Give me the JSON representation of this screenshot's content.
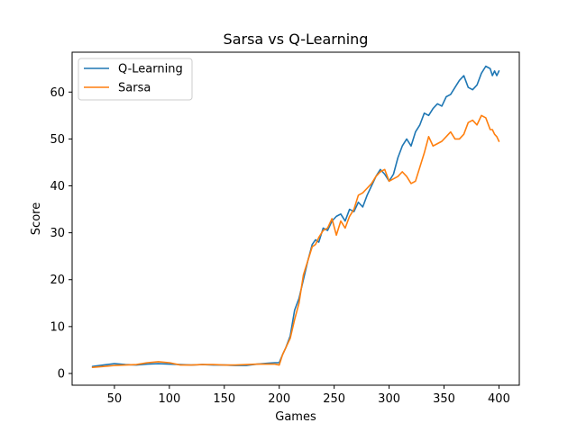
{
  "chart_data": {
    "type": "line",
    "title": "Sarsa vs Q-Learning",
    "xlabel": "Games",
    "ylabel": "Score",
    "xlim": [
      11.5,
      418.5
    ],
    "ylim": [
      -2.5,
      68.5
    ],
    "xticks": [
      50,
      100,
      150,
      200,
      250,
      300,
      350,
      400
    ],
    "yticks": [
      0,
      10,
      20,
      30,
      40,
      50,
      60
    ],
    "legend_position": "upper left",
    "grid": false,
    "series": [
      {
        "name": "Q-Learning",
        "color": "#1f77b4",
        "x": [
          30,
          40,
          50,
          60,
          70,
          80,
          90,
          100,
          110,
          120,
          130,
          140,
          150,
          160,
          170,
          180,
          190,
          196,
          200,
          203,
          206,
          210,
          214,
          218,
          222,
          226,
          230,
          233,
          236,
          240,
          244,
          248,
          252,
          256,
          260,
          264,
          268,
          272,
          276,
          280,
          284,
          288,
          292,
          296,
          300,
          304,
          308,
          312,
          316,
          320,
          324,
          328,
          332,
          336,
          340,
          344,
          348,
          352,
          356,
          360,
          364,
          368,
          372,
          376,
          380,
          384,
          388,
          392,
          394,
          396,
          398,
          400
        ],
        "y": [
          1.5,
          1.8,
          2.1,
          1.9,
          1.8,
          2.0,
          2.1,
          2.0,
          1.9,
          1.8,
          1.9,
          1.8,
          1.8,
          1.7,
          1.7,
          2.0,
          2.2,
          2.3,
          2.3,
          4.0,
          5.5,
          8.0,
          13.5,
          16.0,
          20.0,
          24.0,
          27.5,
          28.5,
          28.0,
          31.0,
          30.5,
          32.5,
          33.5,
          34.0,
          32.5,
          35.0,
          34.5,
          36.5,
          35.5,
          38.0,
          40.0,
          42.0,
          43.5,
          42.5,
          41.0,
          42.5,
          46.0,
          48.5,
          50.0,
          48.5,
          51.5,
          53.0,
          55.5,
          55.0,
          56.5,
          57.5,
          57.0,
          59.0,
          59.5,
          61.0,
          62.5,
          63.5,
          61.0,
          60.5,
          61.5,
          64.0,
          65.5,
          65.0,
          63.5,
          64.5,
          63.5,
          64.5
        ]
      },
      {
        "name": "Sarsa",
        "color": "#ff7f0e",
        "x": [
          30,
          40,
          50,
          60,
          70,
          80,
          90,
          100,
          110,
          120,
          130,
          140,
          150,
          160,
          170,
          180,
          190,
          196,
          200,
          203,
          206,
          210,
          214,
          218,
          222,
          226,
          230,
          233,
          236,
          240,
          244,
          248,
          252,
          256,
          260,
          264,
          268,
          272,
          276,
          280,
          284,
          288,
          292,
          296,
          300,
          304,
          308,
          312,
          316,
          320,
          324,
          328,
          332,
          336,
          340,
          344,
          348,
          352,
          356,
          360,
          364,
          368,
          372,
          376,
          380,
          384,
          388,
          392,
          394,
          396,
          398,
          400
        ],
        "y": [
          1.3,
          1.5,
          1.7,
          1.8,
          1.9,
          2.3,
          2.5,
          2.3,
          1.8,
          1.8,
          1.9,
          1.9,
          1.8,
          1.8,
          1.9,
          2.0,
          2.0,
          2.0,
          1.8,
          4.0,
          5.5,
          7.5,
          11.5,
          15.0,
          21.0,
          24.0,
          27.0,
          27.5,
          29.0,
          30.5,
          31.0,
          33.0,
          29.5,
          32.5,
          31.0,
          33.5,
          35.0,
          38.0,
          38.5,
          39.5,
          40.5,
          42.0,
          43.0,
          43.5,
          41.0,
          41.5,
          42.0,
          43.0,
          42.0,
          40.5,
          41.0,
          44.0,
          47.0,
          50.5,
          48.5,
          49.0,
          49.5,
          50.5,
          51.5,
          50.0,
          50.0,
          51.0,
          53.5,
          54.0,
          53.0,
          55.0,
          54.5,
          52.0,
          52.0,
          51.0,
          50.5,
          49.5
        ]
      }
    ]
  }
}
